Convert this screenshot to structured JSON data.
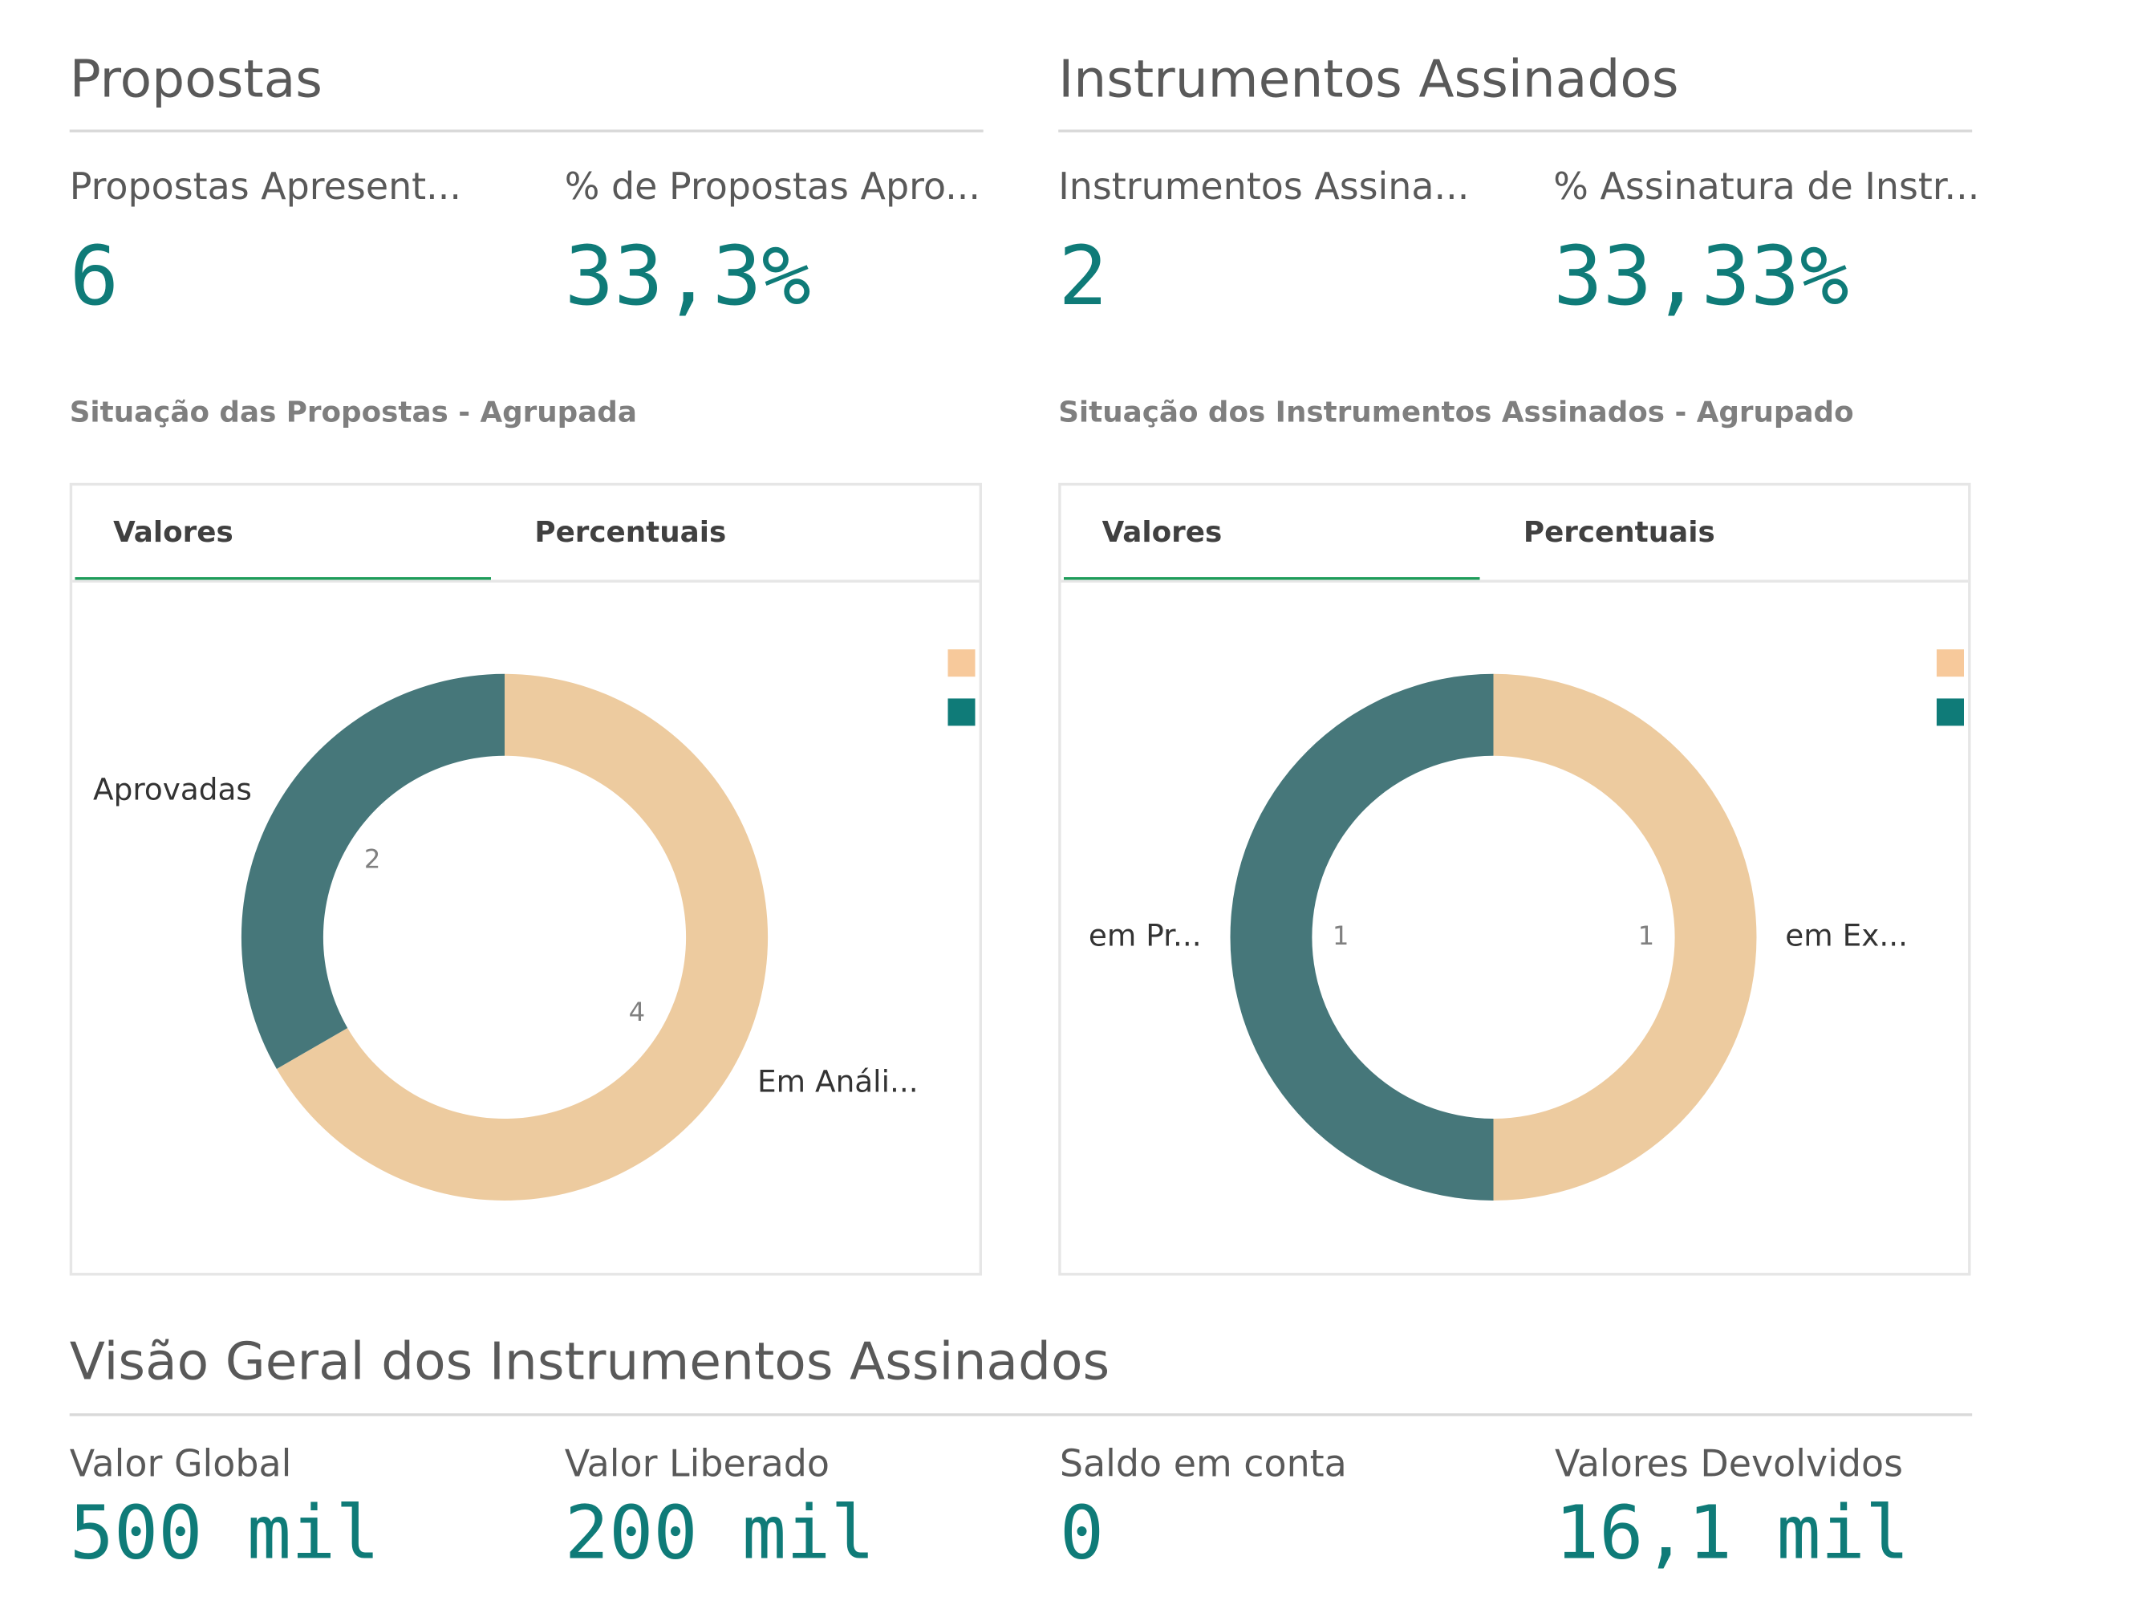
{
  "sections": [
    {
      "title": "Propostas",
      "kpis": [
        {
          "label": "Propostas Apresent...",
          "value": "6"
        },
        {
          "label": "% de Propostas Apro...",
          "value": "33,3%"
        }
      ]
    },
    {
      "title": "Instrumentos Assinados",
      "kpis": [
        {
          "label": "Instrumentos Assina...",
          "value": "2"
        },
        {
          "label": "% Assinatura de Instr...",
          "value": "33,33%"
        }
      ]
    }
  ],
  "chart_data": [
    {
      "type": "pie",
      "title": "Situação das Propostas - Agrupada",
      "tabs": [
        "Valores",
        "Percentuais"
      ],
      "categories": [
        "Em Análi...",
        "Aprovadas"
      ],
      "values": [
        4,
        2
      ],
      "colors": [
        "#edcb9f",
        "#46777a"
      ],
      "legend_colors": [
        "#f7c99b",
        "#0f7b78"
      ],
      "donut": true
    },
    {
      "type": "pie",
      "title": "Situação dos Instrumentos Assinados - Agrupado",
      "tabs": [
        "Valores",
        "Percentuais"
      ],
      "categories": [
        "em Ex...",
        "em Pr..."
      ],
      "values": [
        1,
        1
      ],
      "colors": [
        "#edcb9f",
        "#46777a"
      ],
      "legend_colors": [
        "#f7c99b",
        "#0f7b78"
      ],
      "donut": true
    }
  ],
  "overview": {
    "title": "Visão Geral dos Instrumentos Assinados",
    "kpis": [
      {
        "label": "Valor Global",
        "value": "500 mil"
      },
      {
        "label": "Valor Liberado",
        "value": "200 mil"
      },
      {
        "label": "Saldo em conta",
        "value": "0"
      },
      {
        "label": "Valores Devolvidos",
        "value": "16,1 mil"
      }
    ]
  }
}
